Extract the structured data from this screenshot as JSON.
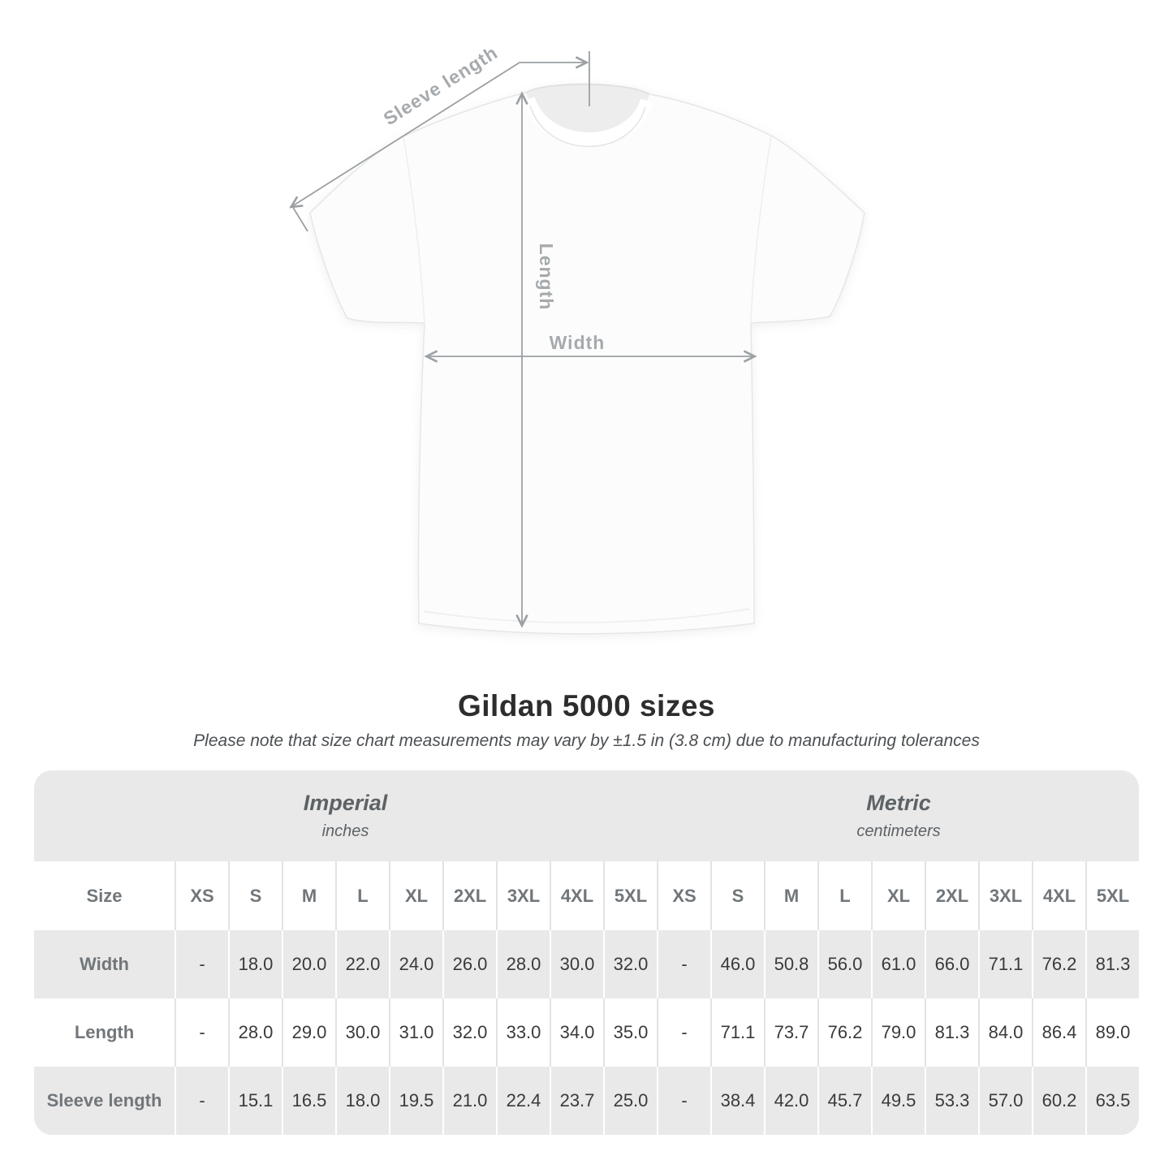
{
  "diagram": {
    "labels": {
      "sleeve_length": "Sleeve length",
      "length": "Length",
      "width": "Width"
    }
  },
  "title": "Gildan 5000 sizes",
  "subtitle": "Please note that size chart measurements may vary by ±1.5 in (3.8 cm) due to manufacturing tolerances",
  "table": {
    "sections": [
      {
        "name": "Imperial",
        "unit": "inches"
      },
      {
        "name": "Metric",
        "unit": "centimeters"
      }
    ],
    "size_header": "Size",
    "sizes": [
      "XS",
      "S",
      "M",
      "L",
      "XL",
      "2XL",
      "3XL",
      "4XL",
      "5XL"
    ],
    "rows": [
      {
        "label": "Width",
        "imperial": [
          "-",
          "18.0",
          "20.0",
          "22.0",
          "24.0",
          "26.0",
          "28.0",
          "30.0",
          "32.0"
        ],
        "metric": [
          "-",
          "46.0",
          "50.8",
          "56.0",
          "61.0",
          "66.0",
          "71.1",
          "76.2",
          "81.3"
        ]
      },
      {
        "label": "Length",
        "imperial": [
          "-",
          "28.0",
          "29.0",
          "30.0",
          "31.0",
          "32.0",
          "33.0",
          "34.0",
          "35.0"
        ],
        "metric": [
          "-",
          "71.1",
          "73.7",
          "76.2",
          "79.0",
          "81.3",
          "84.0",
          "86.4",
          "89.0"
        ]
      },
      {
        "label": "Sleeve length",
        "imperial": [
          "-",
          "15.1",
          "16.5",
          "18.0",
          "19.5",
          "21.0",
          "22.4",
          "23.7",
          "25.0"
        ],
        "metric": [
          "-",
          "38.4",
          "42.0",
          "45.7",
          "49.5",
          "53.3",
          "57.0",
          "60.2",
          "63.5"
        ]
      }
    ]
  },
  "colors": {
    "gray_cell": "#e9e9e9",
    "sep": "#e3e3e3",
    "arrow": "#9ba0a3",
    "shirt_label": "#a6aaad",
    "title": "#2d2d2d",
    "subtitle": "#4b4f52",
    "band_text": "#5d6266",
    "head_text": "#71767a",
    "value_text": "#3a3a3a"
  }
}
